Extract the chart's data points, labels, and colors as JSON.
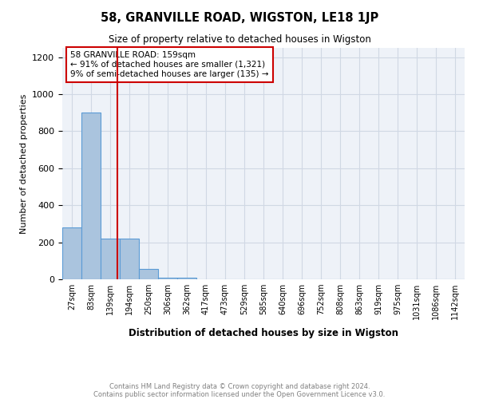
{
  "title": "58, GRANVILLE ROAD, WIGSTON, LE18 1JP",
  "subtitle": "Size of property relative to detached houses in Wigston",
  "xlabel": "Distribution of detached houses by size in Wigston",
  "ylabel": "Number of detached properties",
  "footnote1": "Contains HM Land Registry data © Crown copyright and database right 2024.",
  "footnote2": "Contains public sector information licensed under the Open Government Licence v3.0.",
  "bin_labels": [
    "27sqm",
    "83sqm",
    "139sqm",
    "194sqm",
    "250sqm",
    "306sqm",
    "362sqm",
    "417sqm",
    "473sqm",
    "529sqm",
    "585sqm",
    "640sqm",
    "696sqm",
    "752sqm",
    "808sqm",
    "863sqm",
    "919sqm",
    "975sqm",
    "1031sqm",
    "1086sqm",
    "1142sqm"
  ],
  "bar_heights": [
    280,
    900,
    220,
    220,
    55,
    10,
    10,
    0,
    0,
    0,
    0,
    0,
    0,
    0,
    0,
    0,
    0,
    0,
    0,
    0,
    0
  ],
  "bar_color": "#aac4de",
  "bar_edge_color": "#5b9bd5",
  "grid_color": "#d0d8e4",
  "background_color": "#eef2f8",
  "vline_x": 2.36,
  "vline_color": "#cc0000",
  "annotation_text": "58 GRANVILLE ROAD: 159sqm\n← 91% of detached houses are smaller (1,321)\n9% of semi-detached houses are larger (135) →",
  "annotation_box_color": "#cc0000",
  "ylim": [
    0,
    1250
  ],
  "yticks": [
    0,
    200,
    400,
    600,
    800,
    1000,
    1200
  ]
}
